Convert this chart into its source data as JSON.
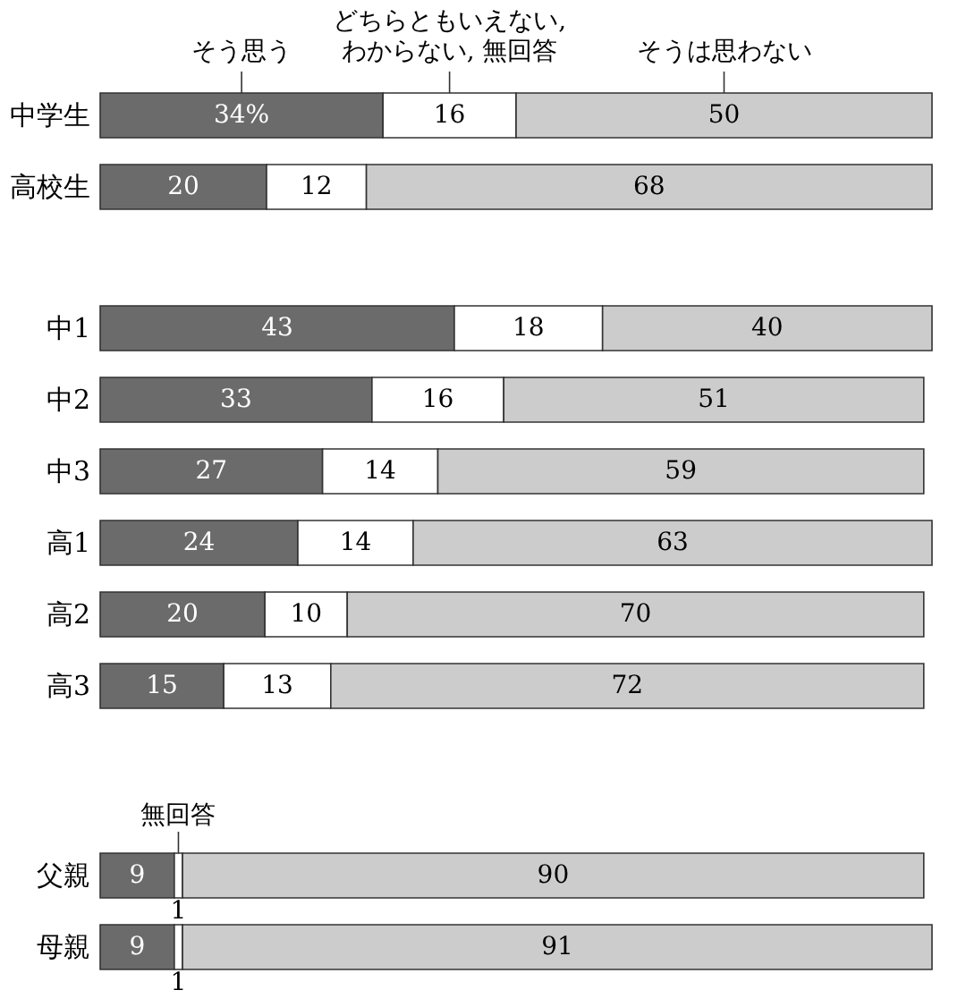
{
  "chart_data": [
    {
      "type": "bar",
      "orientation": "horizontal",
      "stacked": true,
      "xlim": [
        0,
        100
      ],
      "tick_labels": "y",
      "categories": [
        "中学生",
        "高校生"
      ],
      "series": [
        {
          "name": "そう思う",
          "color": "#6b6b6b",
          "values": [
            34,
            20
          ],
          "value_labels": [
            "34%",
            "20"
          ]
        },
        {
          "name": "どちらともいえない,\nわからない, 無回答",
          "color": "#ffffff",
          "values": [
            16,
            12
          ],
          "value_labels": [
            "16",
            "12"
          ]
        },
        {
          "name": "そうは思わない",
          "color": "#cccccc",
          "values": [
            50,
            68
          ],
          "value_labels": [
            "50",
            "68"
          ]
        }
      ]
    },
    {
      "type": "bar",
      "orientation": "horizontal",
      "stacked": true,
      "xlim": [
        0,
        101
      ],
      "tick_labels": "y",
      "categories": [
        "中1",
        "中2",
        "中3",
        "高1",
        "高2",
        "高3"
      ],
      "series": [
        {
          "color": "#6b6b6b",
          "values": [
            43,
            33,
            27,
            24,
            20,
            15
          ],
          "value_labels": [
            "43",
            "33",
            "27",
            "24",
            "20",
            "15"
          ]
        },
        {
          "color": "#ffffff",
          "values": [
            18,
            16,
            14,
            14,
            10,
            13
          ],
          "value_labels": [
            "18",
            "16",
            "14",
            "14",
            "10",
            "13"
          ]
        },
        {
          "color": "#cccccc",
          "values": [
            40,
            51,
            59,
            63,
            70,
            72
          ],
          "value_labels": [
            "40",
            "51",
            "59",
            "63",
            "70",
            "72"
          ]
        }
      ]
    },
    {
      "type": "bar",
      "orientation": "horizontal",
      "stacked": true,
      "xlim": [
        0,
        101
      ],
      "tick_labels": "y",
      "categories": [
        "父親",
        "母親"
      ],
      "annotations": [
        {
          "text": "無回答",
          "x": 9.5,
          "y": "父親"
        }
      ],
      "series": [
        {
          "color": "#6b6b6b",
          "values": [
            9,
            9
          ],
          "value_labels": [
            "9",
            "9"
          ]
        },
        {
          "color": "#ffffff",
          "values": [
            1,
            1
          ],
          "value_labels": [
            "1",
            "1"
          ]
        },
        {
          "color": "#cccccc",
          "values": [
            90,
            91
          ],
          "value_labels": [
            "90",
            "91"
          ]
        }
      ]
    }
  ]
}
